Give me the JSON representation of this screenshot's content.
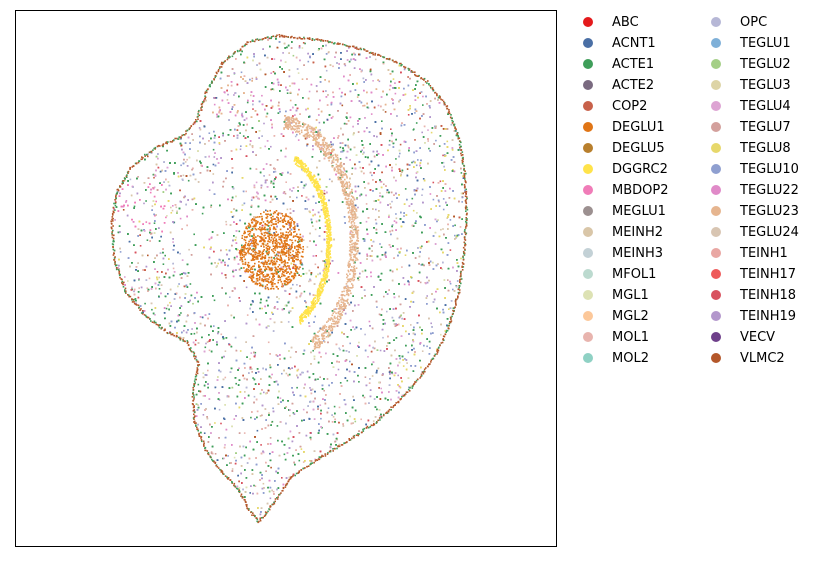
{
  "chart_data": {
    "type": "scatter",
    "title": "",
    "xlabel": "",
    "ylabel": "",
    "grid": false,
    "axis_ticks": false,
    "legend_placement": "outside-right",
    "legend_columns": 2,
    "legend": [
      {
        "name": "ABC",
        "color": "#e41a1c"
      },
      {
        "name": "ACNT1",
        "color": "#4a6fa5"
      },
      {
        "name": "ACTE1",
        "color": "#3f9e5a"
      },
      {
        "name": "ACTE2",
        "color": "#7a6a80"
      },
      {
        "name": "COP2",
        "color": "#c8614a"
      },
      {
        "name": "DEGLU1",
        "color": "#e07516"
      },
      {
        "name": "DEGLU5",
        "color": "#b87f2d"
      },
      {
        "name": "DGGRC2",
        "color": "#ffe34a"
      },
      {
        "name": "MBDOP2",
        "color": "#f07cb8"
      },
      {
        "name": "MEGLU1",
        "color": "#9c9090"
      },
      {
        "name": "MEINH2",
        "color": "#d9c6a8"
      },
      {
        "name": "MEINH3",
        "color": "#c3d1d6"
      },
      {
        "name": "MFOL1",
        "color": "#bcdacf"
      },
      {
        "name": "MGL1",
        "color": "#dde2b4"
      },
      {
        "name": "MGL2",
        "color": "#fcc89a"
      },
      {
        "name": "MOL1",
        "color": "#e8b4ae"
      },
      {
        "name": "MOL2",
        "color": "#8fd1c4"
      },
      {
        "name": "OPC",
        "color": "#b6b7d6"
      },
      {
        "name": "TEGLU1",
        "color": "#7fb0d8"
      },
      {
        "name": "TEGLU2",
        "color": "#a4cf86"
      },
      {
        "name": "TEGLU3",
        "color": "#ddd4a6"
      },
      {
        "name": "TEGLU4",
        "color": "#dda4d3"
      },
      {
        "name": "TEGLU7",
        "color": "#d3a09c"
      },
      {
        "name": "TEGLU8",
        "color": "#e7d86b"
      },
      {
        "name": "TEGLU10",
        "color": "#8f9fd0"
      },
      {
        "name": "TEGLU22",
        "color": "#e08ac8"
      },
      {
        "name": "TEGLU23",
        "color": "#e6b58f"
      },
      {
        "name": "TEGLU24",
        "color": "#d8c5b2"
      },
      {
        "name": "TEINH1",
        "color": "#e9a7a3"
      },
      {
        "name": "TEINH17",
        "color": "#ee5a5a"
      },
      {
        "name": "TEINH18",
        "color": "#d8515e"
      },
      {
        "name": "TEINH19",
        "color": "#b397cc"
      },
      {
        "name": "VECV",
        "color": "#6e3f8a"
      },
      {
        "name": "VLMC2",
        "color": "#b4572a"
      }
    ]
  }
}
